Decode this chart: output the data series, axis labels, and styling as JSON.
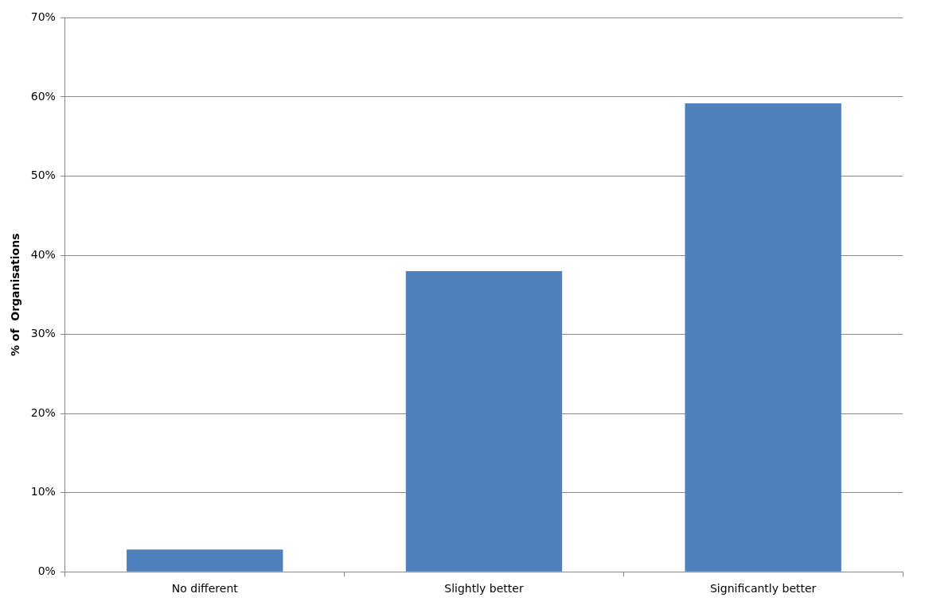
{
  "chart_data": {
    "type": "bar",
    "ylabel": "% of  Organisations",
    "categories": [
      "No different",
      "Slightly better",
      "Significantly better"
    ],
    "values": [
      2.8,
      38,
      59.2
    ],
    "color": "#4f81bd",
    "ylim": [
      0,
      70
    ],
    "yticks": [
      {
        "value": 0,
        "label": "0%"
      },
      {
        "value": 10,
        "label": "10%"
      },
      {
        "value": 20,
        "label": "20%"
      },
      {
        "value": 30,
        "label": "30%"
      },
      {
        "value": 40,
        "label": "40%"
      },
      {
        "value": 50,
        "label": "50%"
      },
      {
        "value": 60,
        "label": "60%"
      },
      {
        "value": 70,
        "label": "70%"
      }
    ],
    "grid": "y",
    "legend": false
  }
}
